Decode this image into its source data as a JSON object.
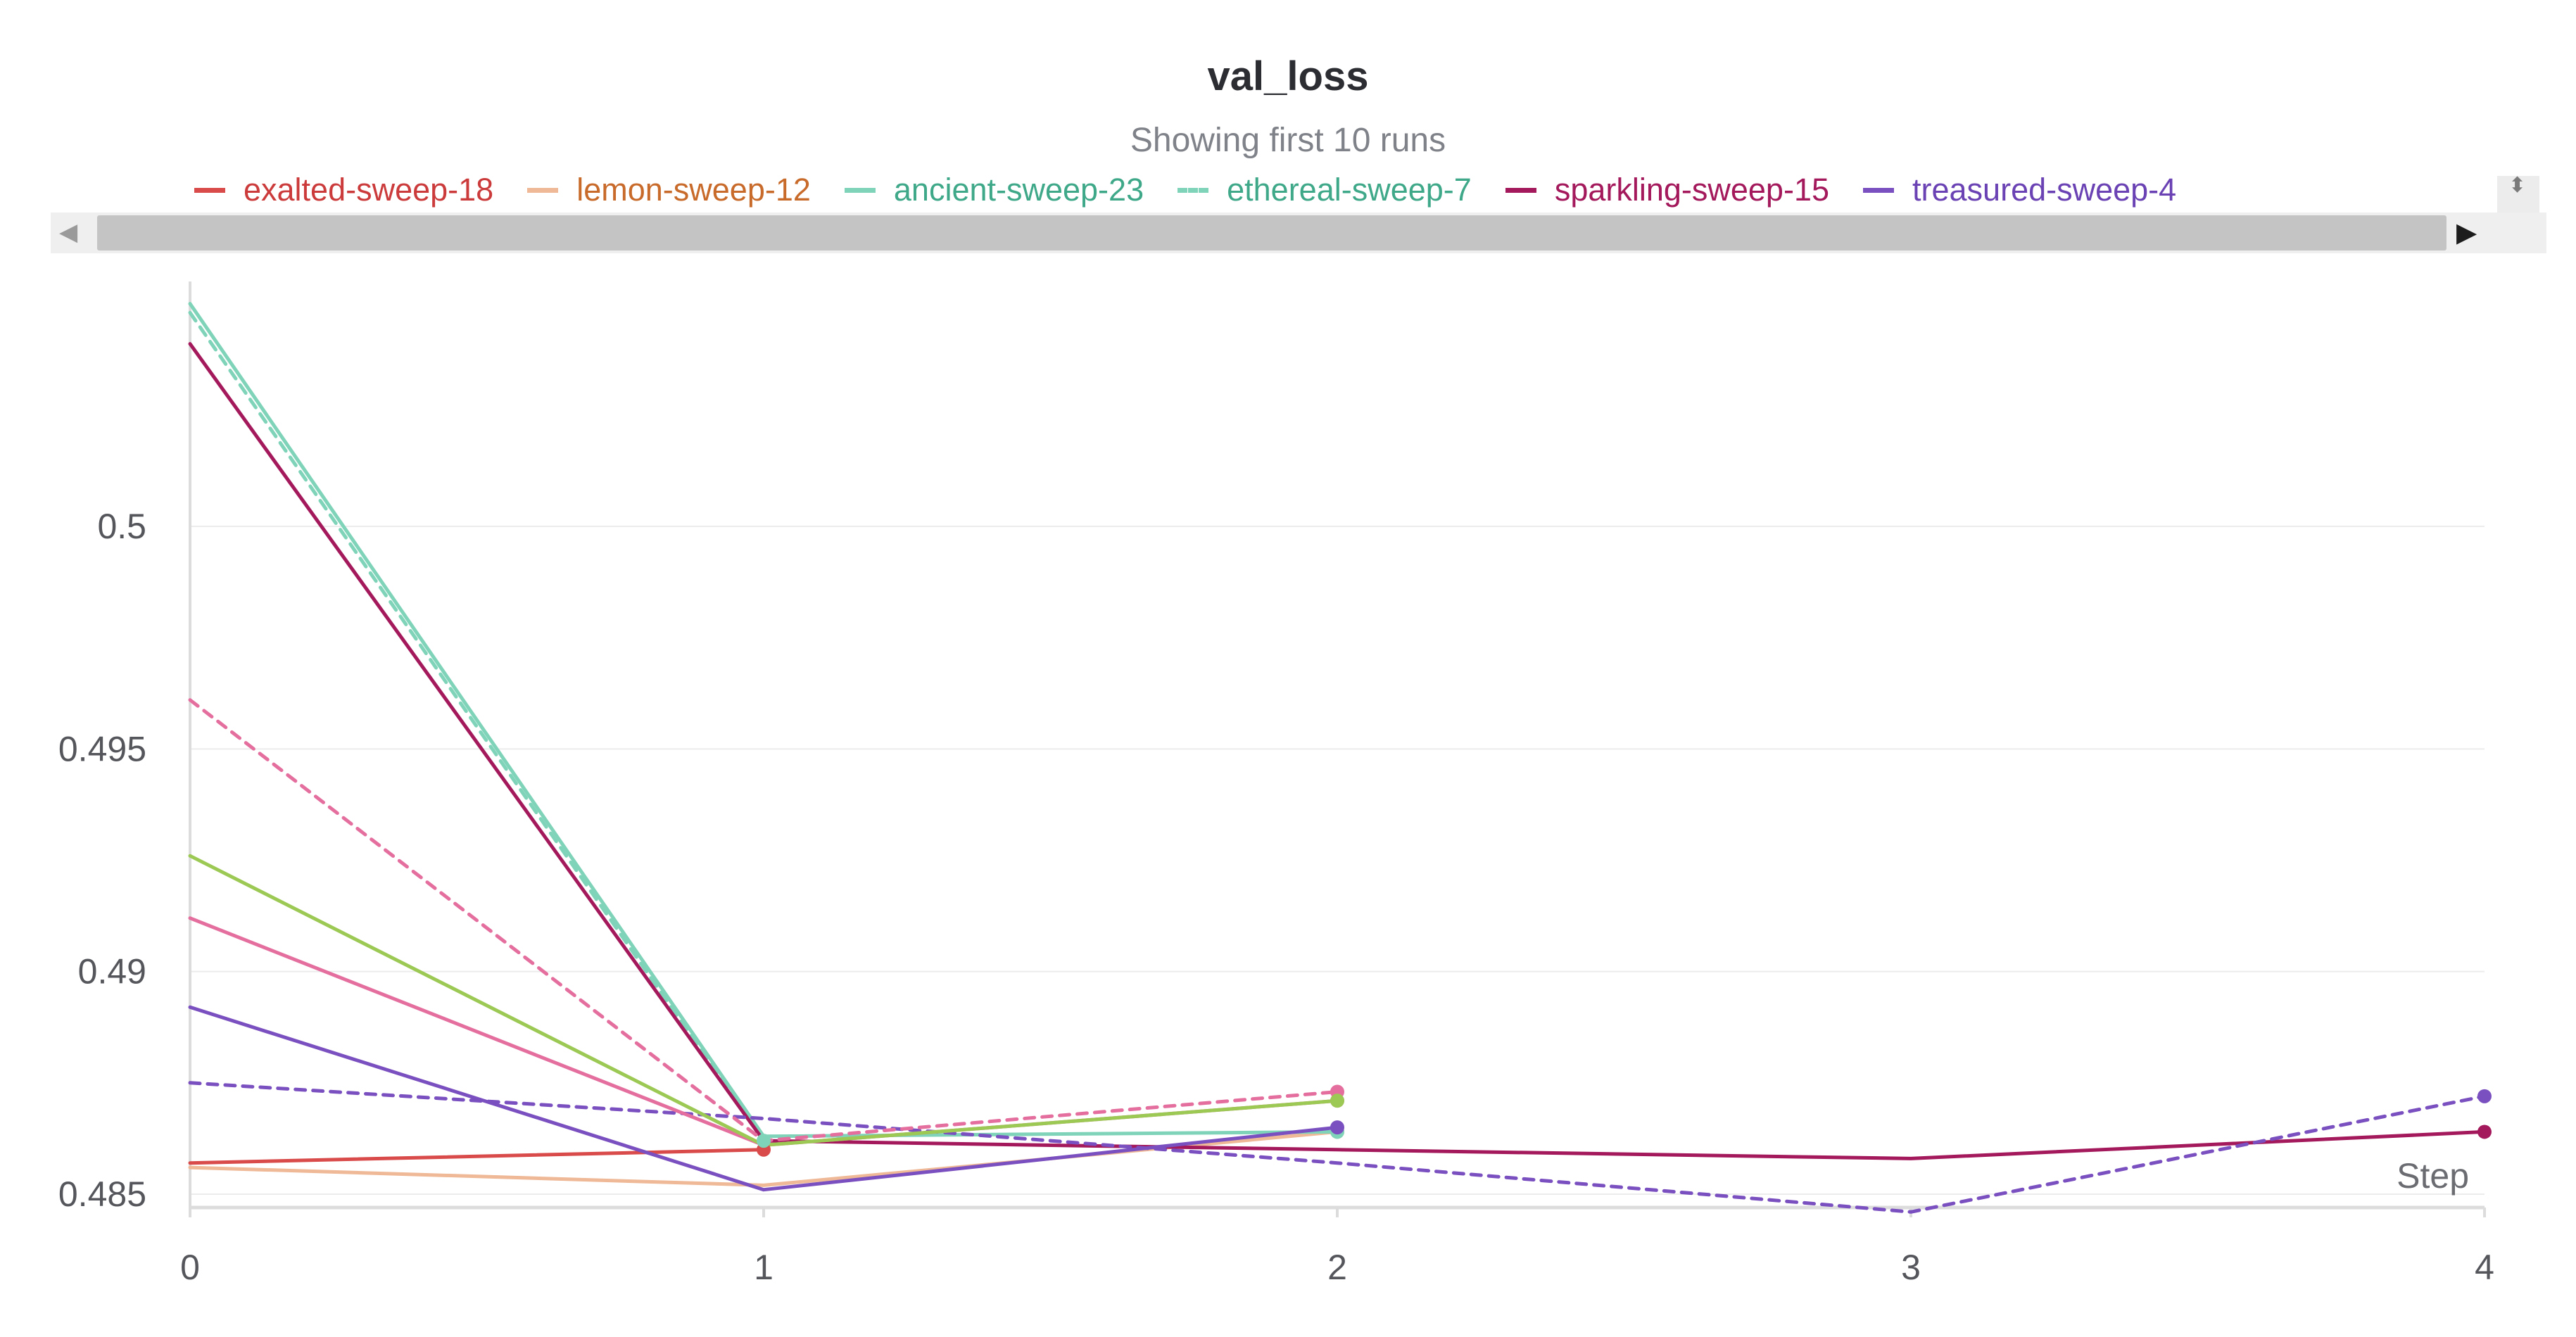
{
  "chart_data": {
    "type": "line",
    "title": "val_loss",
    "subtitle": "Showing first 10 runs",
    "xlabel": "Step",
    "ylabel": "",
    "x_ticks": [
      0,
      1,
      2,
      3,
      4
    ],
    "y_ticks": [
      0.485,
      0.49,
      0.495,
      0.5
    ],
    "y_tick_labels": [
      "0.485",
      "0.49",
      "0.495",
      "0.5"
    ],
    "xlim": [
      0,
      4
    ],
    "ylim": [
      0.4847,
      0.5055
    ],
    "grid": "horizontal",
    "legend_position": "top",
    "legend": [
      {
        "name": "exalted-sweep-18",
        "color": "#d94a4a",
        "text_color": "#cc3b3b",
        "dashed": false
      },
      {
        "name": "lemon-sweep-12",
        "color": "#efb896",
        "text_color": "#c86a2a",
        "dashed": false
      },
      {
        "name": "ancient-sweep-23",
        "color": "#7fd3b8",
        "text_color": "#3ea888",
        "dashed": false
      },
      {
        "name": "ethereal-sweep-7",
        "color": "#7fd3b8",
        "text_color": "#3ea888",
        "dashed": true
      },
      {
        "name": "sparkling-sweep-15",
        "color": "#a3195b",
        "text_color": "#a3195b",
        "dashed": false
      },
      {
        "name": "treasured-sweep-4",
        "color": "#7a4fbf",
        "text_color": "#6a42b3",
        "dashed": false
      }
    ],
    "series": [
      {
        "color": "#d94a4a",
        "dashed": false,
        "x": [
          0,
          1
        ],
        "y": [
          0.4857,
          0.486
        ]
      },
      {
        "color": "#efb896",
        "dashed": false,
        "x": [
          0,
          1,
          2
        ],
        "y": [
          0.4856,
          0.4852,
          0.4864
        ]
      },
      {
        "color": "#7fd3b8",
        "dashed": false,
        "x": [
          0,
          1,
          2
        ],
        "y": [
          0.505,
          0.4863,
          0.4864
        ]
      },
      {
        "color": "#7fd3b8",
        "dashed": true,
        "x": [
          0,
          1
        ],
        "y": [
          0.5048,
          0.4862
        ]
      },
      {
        "color": "#a3195b",
        "dashed": false,
        "x": [
          0,
          1,
          2,
          3,
          4
        ],
        "y": [
          0.5041,
          0.4862,
          0.486,
          0.4858,
          0.4864
        ]
      },
      {
        "color": "#7a4fbf",
        "dashed": false,
        "x": [
          0,
          1,
          2
        ],
        "y": [
          0.4892,
          0.4851,
          0.4865
        ]
      },
      {
        "color": "#7a4fbf",
        "dashed": true,
        "x": [
          0,
          1,
          2,
          3,
          4
        ],
        "y": [
          0.4875,
          0.4867,
          0.4857,
          0.4846,
          0.4872
        ]
      },
      {
        "color": "#e46f9e",
        "dashed": true,
        "x": [
          0,
          1,
          2
        ],
        "y": [
          0.4961,
          0.4862,
          0.4873
        ]
      },
      {
        "color": "#e46f9e",
        "dashed": false,
        "x": [
          0,
          1,
          2
        ],
        "y": [
          0.4912,
          0.4861,
          0.4871
        ]
      },
      {
        "color": "#9cc854",
        "dashed": false,
        "x": [
          0,
          1,
          2
        ],
        "y": [
          0.4926,
          0.4861,
          0.4871
        ]
      }
    ]
  }
}
